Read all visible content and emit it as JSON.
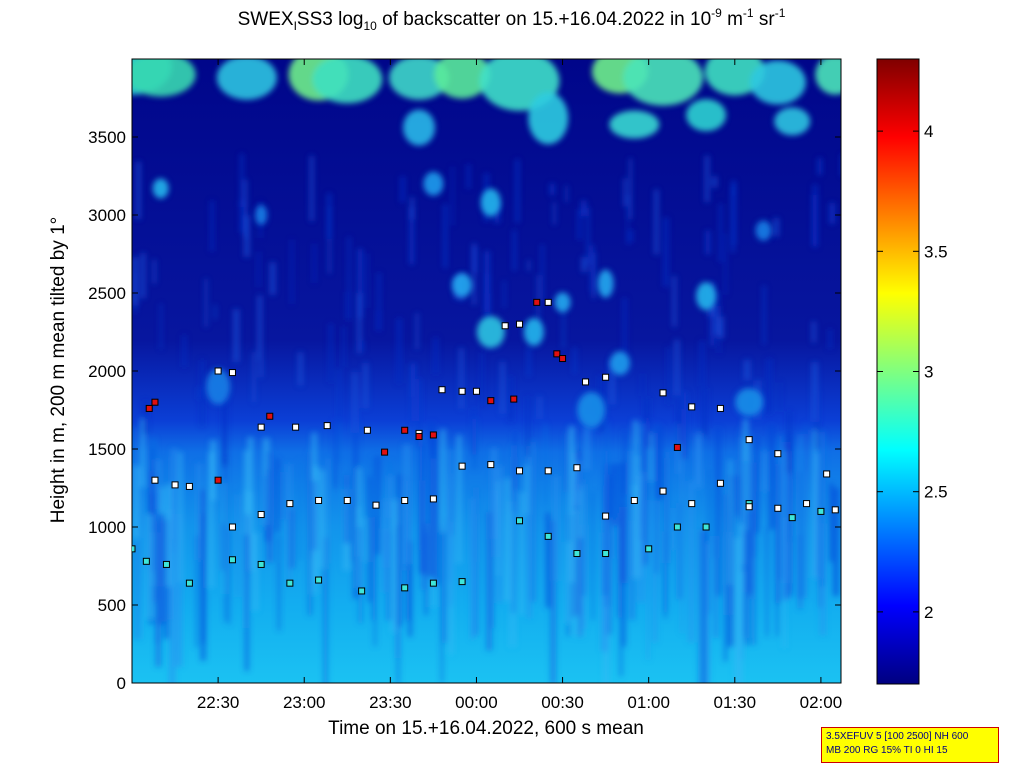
{
  "title": {
    "pre": "SWEX",
    "sub1": "I",
    "mid": "SS3 log",
    "sub2": "10",
    "post": " of backscatter on 15.+16.04.2022 in 10",
    "sup1": "-9",
    "unit1": " m",
    "sup2": "-1",
    "unit2": " sr",
    "sup3": "-1"
  },
  "info_box": {
    "line1": "3.5XEFUV 5 [100 2500] NH 600",
    "line2": "MB 200 RG 15% TI 0 HI 15"
  },
  "chart_data": {
    "type": "heatmap",
    "xlabel": "Time on 15.+16.04.2022, 600 s mean",
    "ylabel": "Height in m, 200 m mean tilted by 1°",
    "xlim": [
      "22:00",
      "02:07"
    ],
    "ylim": [
      0,
      4000
    ],
    "x_ticks": [
      "22:30",
      "23:00",
      "23:30",
      "00:00",
      "00:30",
      "01:00",
      "01:30",
      "02:00"
    ],
    "y_ticks": [
      0,
      500,
      1000,
      1500,
      2000,
      2500,
      3000,
      3500
    ],
    "colorbar": {
      "range": [
        1.7,
        4.3
      ],
      "ticks": [
        2,
        2.5,
        3,
        3.5,
        4
      ],
      "colormap": "jet"
    },
    "colors": {
      "low": "#000080",
      "mid": "#00ffff",
      "high": "#800000"
    },
    "layers": [
      {
        "description_key": "boundary",
        "x": [
          "22:00",
          "22:30",
          "23:00",
          "23:30",
          "00:00",
          "00:30",
          "01:00",
          "01:30",
          "02:00",
          "02:07"
        ],
        "top_height": [
          1450,
          1500,
          1500,
          1600,
          1550,
          1500,
          1550,
          1600,
          1500,
          1450
        ]
      }
    ],
    "markers": {
      "upper_layer": {
        "x": [
          "22:08",
          "22:15",
          "22:20",
          "22:35",
          "22:45",
          "22:55",
          "23:05",
          "23:15",
          "23:25",
          "23:35",
          "23:45",
          "23:55",
          "00:05",
          "00:15",
          "00:25",
          "00:35",
          "00:45",
          "00:55",
          "01:05",
          "01:15",
          "01:25",
          "01:35",
          "01:45",
          "01:55",
          "02:05"
        ],
        "y": [
          1300,
          1270,
          1260,
          1000,
          1080,
          1150,
          1170,
          1170,
          1140,
          1170,
          1180,
          1390,
          1400,
          1360,
          1360,
          1380,
          1070,
          1170,
          1230,
          1150,
          1280,
          1130,
          1120,
          1150,
          1110
        ]
      },
      "lower_layer": {
        "x": [
          "22:00",
          "22:05",
          "22:12",
          "22:20",
          "22:35",
          "22:45",
          "22:55",
          "23:05",
          "23:20",
          "23:35",
          "23:45",
          "23:55",
          "00:15",
          "00:25",
          "00:35",
          "00:45",
          "01:00",
          "01:10",
          "01:20",
          "01:35",
          "01:50",
          "02:00"
        ],
        "y": [
          860,
          780,
          760,
          640,
          790,
          760,
          640,
          660,
          590,
          610,
          640,
          650,
          1040,
          940,
          830,
          830,
          860,
          1000,
          1000,
          1150,
          1060,
          1100
        ]
      },
      "red_points": {
        "x": [
          "22:06",
          "22:08",
          "22:30",
          "22:48",
          "23:28",
          "23:35",
          "23:40",
          "23:45",
          "00:05",
          "00:13",
          "00:21",
          "00:28",
          "00:30",
          "01:10"
        ],
        "y": [
          1760,
          1800,
          1300,
          1710,
          1480,
          1620,
          1580,
          1590,
          1810,
          1820,
          2440,
          2110,
          2080,
          1510
        ]
      },
      "white_points": {
        "x": [
          "22:30",
          "22:35",
          "22:45",
          "22:57",
          "23:08",
          "23:22",
          "23:40",
          "23:48",
          "23:55",
          "00:00",
          "00:10",
          "00:15",
          "00:25",
          "00:38",
          "00:45",
          "01:05",
          "01:15",
          "01:25",
          "01:35",
          "01:45",
          "02:02"
        ],
        "y": [
          2000,
          1990,
          1640,
          1640,
          1650,
          1620,
          1600,
          1880,
          1870,
          1870,
          2290,
          2300,
          2440,
          1930,
          1960,
          1860,
          1770,
          1760,
          1560,
          1470,
          1340
        ]
      }
    }
  }
}
